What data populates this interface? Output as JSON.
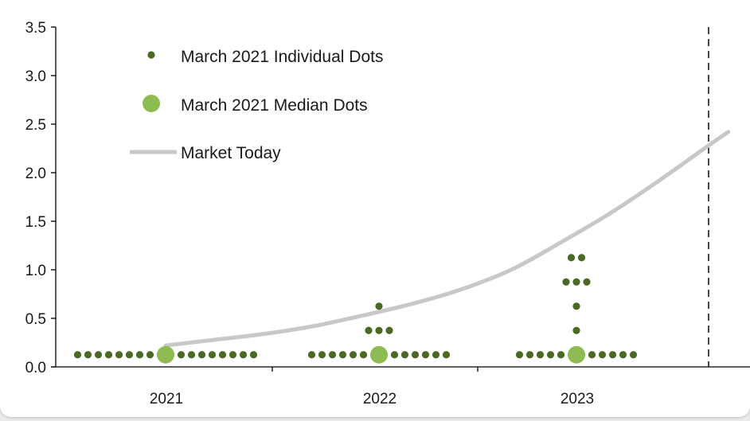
{
  "chart_data": {
    "type": "scatter",
    "title": "",
    "xlabel": "",
    "ylabel": "",
    "categories": [
      "2021",
      "2022",
      "2023"
    ],
    "ylim": [
      0,
      3.5
    ],
    "y_ticks": [
      "0.0",
      "0.5",
      "1.0",
      "1.5",
      "2.0",
      "2.5",
      "3.0",
      "3.5"
    ],
    "grid": false,
    "legend_position": "top-left",
    "series": [
      {
        "name": "March 2021 Individual Dots",
        "marker": "small-dot",
        "color": "#4a6a24",
        "points": [
          {
            "category": "2021",
            "y": 0.125,
            "count": 18
          },
          {
            "category": "2022",
            "y": 0.125,
            "count": 14
          },
          {
            "category": "2022",
            "y": 0.375,
            "count": 3
          },
          {
            "category": "2022",
            "y": 0.625,
            "count": 1
          },
          {
            "category": "2023",
            "y": 0.125,
            "count": 12
          },
          {
            "category": "2023",
            "y": 0.375,
            "count": 1
          },
          {
            "category": "2023",
            "y": 0.625,
            "count": 1
          },
          {
            "category": "2023",
            "y": 0.875,
            "count": 3
          },
          {
            "category": "2023",
            "y": 1.125,
            "count": 2
          }
        ]
      },
      {
        "name": "March 2021 Median Dots",
        "marker": "large-dot",
        "color": "#8fbc52",
        "points": [
          {
            "category": "2021",
            "y": 0.125
          },
          {
            "category": "2022",
            "y": 0.125
          },
          {
            "category": "2023",
            "y": 0.125
          }
        ]
      },
      {
        "name": "Market Today",
        "marker": "line",
        "color": "#c8c8c8",
        "points": [
          {
            "x": 2021.0,
            "y": 0.22
          },
          {
            "x": 2021.25,
            "y": 0.28
          },
          {
            "x": 2021.5,
            "y": 0.34
          },
          {
            "x": 2021.75,
            "y": 0.42
          },
          {
            "x": 2022.0,
            "y": 0.53
          },
          {
            "x": 2022.25,
            "y": 0.65
          },
          {
            "x": 2022.5,
            "y": 0.8
          },
          {
            "x": 2022.75,
            "y": 1.0
          },
          {
            "x": 2023.0,
            "y": 1.28
          },
          {
            "x": 2023.25,
            "y": 1.58
          },
          {
            "x": 2023.5,
            "y": 1.92
          },
          {
            "x": 2023.75,
            "y": 2.28
          },
          {
            "x": 2023.85,
            "y": 2.42
          }
        ]
      }
    ],
    "reference_line": {
      "style": "dashed",
      "x": 2023.75
    }
  }
}
